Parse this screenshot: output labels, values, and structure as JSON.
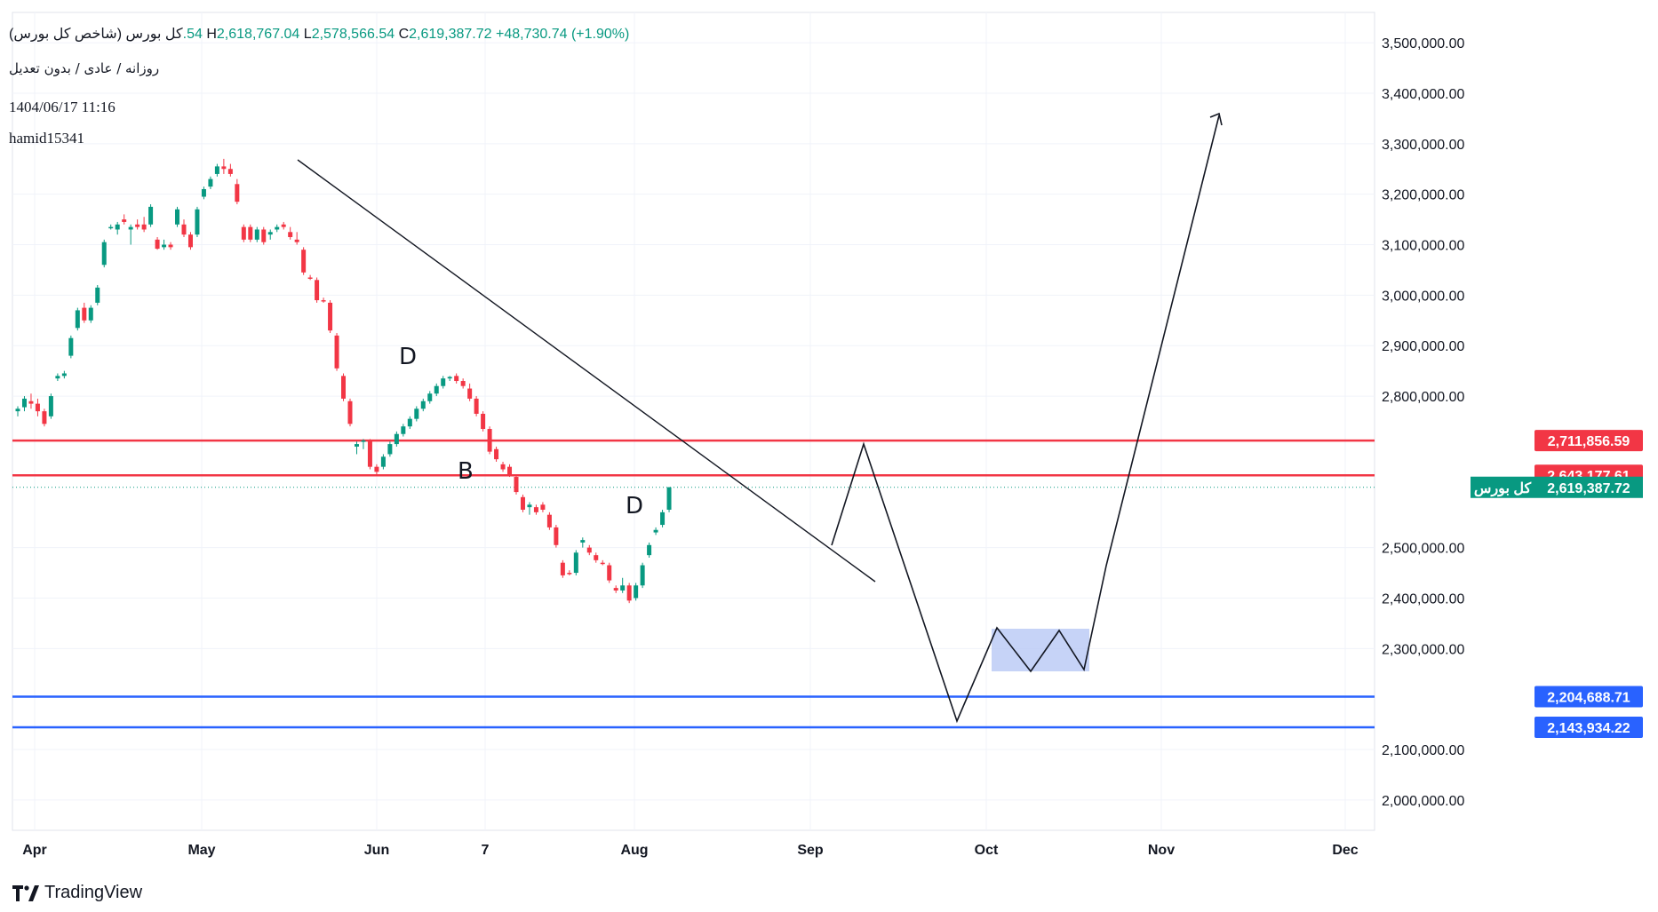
{
  "header": {
    "title": "کل بورس (شاخص کل بورس)",
    "open_fragment": "‎.54",
    "high_label": "H",
    "high_value": "2,618,767.04",
    "low_label": "L",
    "low_value": "2,578,566.54",
    "close_label": "C",
    "close_value": "2,619,387.72",
    "change": "+48,730.74 (+1.90%)",
    "subtitle": "روزانه / عادی / بدون تعدیل",
    "timestamp": "1404/06/17 11:16",
    "username": "hamid15341"
  },
  "brand": {
    "name": "TradingView"
  },
  "colors": {
    "up": "#089981",
    "down": "#f23645",
    "resistance": "#f23645",
    "support": "#2962ff",
    "consolidation_fill": "#b8c8f5",
    "drawing": "#131722"
  },
  "chart_data": {
    "type": "candlestick",
    "ylim": [
      1940000,
      3560000
    ],
    "y_ticks": [
      {
        "value": 3500000,
        "label": "3,500,000.00"
      },
      {
        "value": 3400000,
        "label": "3,400,000.00"
      },
      {
        "value": 3300000,
        "label": "3,300,000.00"
      },
      {
        "value": 3200000,
        "label": "3,200,000.00"
      },
      {
        "value": 3100000,
        "label": "3,100,000.00"
      },
      {
        "value": 3000000,
        "label": "3,000,000.00"
      },
      {
        "value": 2900000,
        "label": "2,900,000.00"
      },
      {
        "value": 2800000,
        "label": "2,800,000.00"
      },
      {
        "value": 2500000,
        "label": "2,500,000.00"
      },
      {
        "value": 2400000,
        "label": "2,400,000.00"
      },
      {
        "value": 2300000,
        "label": "2,300,000.00"
      },
      {
        "value": 2100000,
        "label": "2,100,000.00"
      },
      {
        "value": 2000000,
        "label": "2,000,000.00"
      }
    ],
    "x_ticks": [
      "Apr",
      "May",
      "Jun",
      "7",
      "Aug",
      "Sep",
      "Oct",
      "Nov",
      "Dec"
    ],
    "price_levels": [
      {
        "value": 2711856.59,
        "label": "2,711,856.59",
        "kind": "resistance"
      },
      {
        "value": 2643177.61,
        "label": "2,643,177.61",
        "kind": "resistance"
      },
      {
        "value": 2204688.71,
        "label": "2,204,688.71",
        "kind": "support"
      },
      {
        "value": 2143934.22,
        "label": "2,143,934.22",
        "kind": "support"
      }
    ],
    "last_price": {
      "value": 2619387.72,
      "label": "2,619,387.72",
      "name": "کل بورس"
    },
    "annotations": [
      "D",
      "B",
      "D"
    ],
    "candles": [
      [
        2770000,
        2780000,
        2760000,
        2775000
      ],
      [
        2778000,
        2800000,
        2770000,
        2795000
      ],
      [
        2790000,
        2805000,
        2775000,
        2785000
      ],
      [
        2785000,
        2795000,
        2760000,
        2770000
      ],
      [
        2770000,
        2775000,
        2740000,
        2745000
      ],
      [
        2760000,
        2805000,
        2755000,
        2800000
      ],
      [
        2835000,
        2845000,
        2830000,
        2840000
      ],
      [
        2840000,
        2850000,
        2835000,
        2845000
      ],
      [
        2880000,
        2920000,
        2875000,
        2915000
      ],
      [
        2935000,
        2975000,
        2930000,
        2970000
      ],
      [
        2975000,
        2985000,
        2945000,
        2950000
      ],
      [
        2950000,
        2980000,
        2945000,
        2975000
      ],
      [
        2985000,
        3020000,
        2980000,
        3015000
      ],
      [
        3060000,
        3110000,
        3055000,
        3105000
      ],
      [
        3135000,
        3140000,
        3130000,
        3135000
      ],
      [
        3130000,
        3145000,
        3120000,
        3140000
      ],
      [
        3150000,
        3160000,
        3140000,
        3145000
      ],
      [
        3130000,
        3140000,
        3100000,
        3135000
      ],
      [
        3140000,
        3150000,
        3130000,
        3135000
      ],
      [
        3140000,
        3155000,
        3125000,
        3130000
      ],
      [
        3140000,
        3180000,
        3135000,
        3175000
      ],
      [
        3110000,
        3115000,
        3090000,
        3092000
      ],
      [
        3095000,
        3110000,
        3090000,
        3100000
      ],
      [
        3100000,
        3105000,
        3090000,
        3095000
      ],
      [
        3140000,
        3175000,
        3135000,
        3170000
      ],
      [
        3140000,
        3150000,
        3115000,
        3120000
      ],
      [
        3120000,
        3125000,
        3090000,
        3095000
      ],
      [
        3120000,
        3175000,
        3115000,
        3170000
      ],
      [
        3195000,
        3215000,
        3190000,
        3210000
      ],
      [
        3215000,
        3235000,
        3210000,
        3230000
      ],
      [
        3240000,
        3260000,
        3235000,
        3255000
      ],
      [
        3255000,
        3270000,
        3240000,
        3250000
      ],
      [
        3250000,
        3260000,
        3235000,
        3240000
      ],
      [
        3220000,
        3230000,
        3180000,
        3185000
      ],
      [
        3135000,
        3140000,
        3105000,
        3110000
      ],
      [
        3135000,
        3140000,
        3105000,
        3110000
      ],
      [
        3110000,
        3135000,
        3105000,
        3130000
      ],
      [
        3130000,
        3135000,
        3100000,
        3105000
      ],
      [
        3120000,
        3130000,
        3110000,
        3125000
      ],
      [
        3130000,
        3140000,
        3125000,
        3135000
      ],
      [
        3140000,
        3145000,
        3130000,
        3135000
      ],
      [
        3125000,
        3135000,
        3110000,
        3115000
      ],
      [
        3110000,
        3125000,
        3100000,
        3105000
      ],
      [
        3090000,
        3095000,
        3040000,
        3045000
      ],
      [
        3035000,
        3040000,
        3030000,
        3033000
      ],
      [
        3030000,
        3035000,
        2985000,
        2990000
      ],
      [
        2990000,
        2995000,
        2985000,
        2988000
      ],
      [
        2985000,
        2990000,
        2925000,
        2930000
      ],
      [
        2920000,
        2925000,
        2850000,
        2855000
      ],
      [
        2840000,
        2845000,
        2790000,
        2795000
      ],
      [
        2790000,
        2795000,
        2740000,
        2745000
      ],
      [
        2700000,
        2710000,
        2685000,
        2705000
      ],
      [
        2710000,
        2715000,
        2695000,
        2712000
      ],
      [
        2712000,
        2715000,
        2655000,
        2660000
      ],
      [
        2660000,
        2665000,
        2645000,
        2650000
      ],
      [
        2660000,
        2685000,
        2655000,
        2680000
      ],
      [
        2685000,
        2710000,
        2680000,
        2705000
      ],
      [
        2705000,
        2730000,
        2700000,
        2725000
      ],
      [
        2725000,
        2745000,
        2720000,
        2740000
      ],
      [
        2740000,
        2760000,
        2735000,
        2755000
      ],
      [
        2755000,
        2780000,
        2750000,
        2775000
      ],
      [
        2775000,
        2795000,
        2770000,
        2790000
      ],
      [
        2790000,
        2810000,
        2785000,
        2805000
      ],
      [
        2805000,
        2825000,
        2800000,
        2820000
      ],
      [
        2820000,
        2840000,
        2815000,
        2835000
      ],
      [
        2835000,
        2840000,
        2830000,
        2838000
      ],
      [
        2840000,
        2845000,
        2825000,
        2830000
      ],
      [
        2830000,
        2835000,
        2815000,
        2820000
      ],
      [
        2815000,
        2825000,
        2790000,
        2795000
      ],
      [
        2795000,
        2800000,
        2760000,
        2765000
      ],
      [
        2765000,
        2770000,
        2730000,
        2735000
      ],
      [
        2735000,
        2740000,
        2685000,
        2690000
      ],
      [
        2695000,
        2700000,
        2670000,
        2675000
      ],
      [
        2665000,
        2670000,
        2650000,
        2655000
      ],
      [
        2660000,
        2665000,
        2640000,
        2645000
      ],
      [
        2640000,
        2645000,
        2605000,
        2610000
      ],
      [
        2600000,
        2605000,
        2570000,
        2575000
      ],
      [
        2580000,
        2590000,
        2565000,
        2585000
      ],
      [
        2580000,
        2585000,
        2565000,
        2570000
      ],
      [
        2585000,
        2590000,
        2570000,
        2575000
      ],
      [
        2565000,
        2570000,
        2535000,
        2540000
      ],
      [
        2540000,
        2545000,
        2500000,
        2505000
      ],
      [
        2470000,
        2475000,
        2440000,
        2445000
      ],
      [
        2450000,
        2455000,
        2445000,
        2448000
      ],
      [
        2450000,
        2495000,
        2445000,
        2490000
      ],
      [
        2510000,
        2520000,
        2500000,
        2515000
      ],
      [
        2500000,
        2505000,
        2485000,
        2490000
      ],
      [
        2485000,
        2490000,
        2470000,
        2475000
      ],
      [
        2470000,
        2475000,
        2465000,
        2468000
      ],
      [
        2465000,
        2470000,
        2430000,
        2435000
      ],
      [
        2420000,
        2425000,
        2410000,
        2415000
      ],
      [
        2415000,
        2440000,
        2410000,
        2425000
      ],
      [
        2425000,
        2430000,
        2390000,
        2395000
      ],
      [
        2400000,
        2430000,
        2395000,
        2425000
      ],
      [
        2425000,
        2470000,
        2420000,
        2465000
      ],
      [
        2485000,
        2510000,
        2480000,
        2505000
      ],
      [
        2530000,
        2540000,
        2525000,
        2535000
      ],
      [
        2545000,
        2575000,
        2540000,
        2570000
      ],
      [
        2575000,
        2620000,
        2570000,
        2619387
      ]
    ]
  }
}
